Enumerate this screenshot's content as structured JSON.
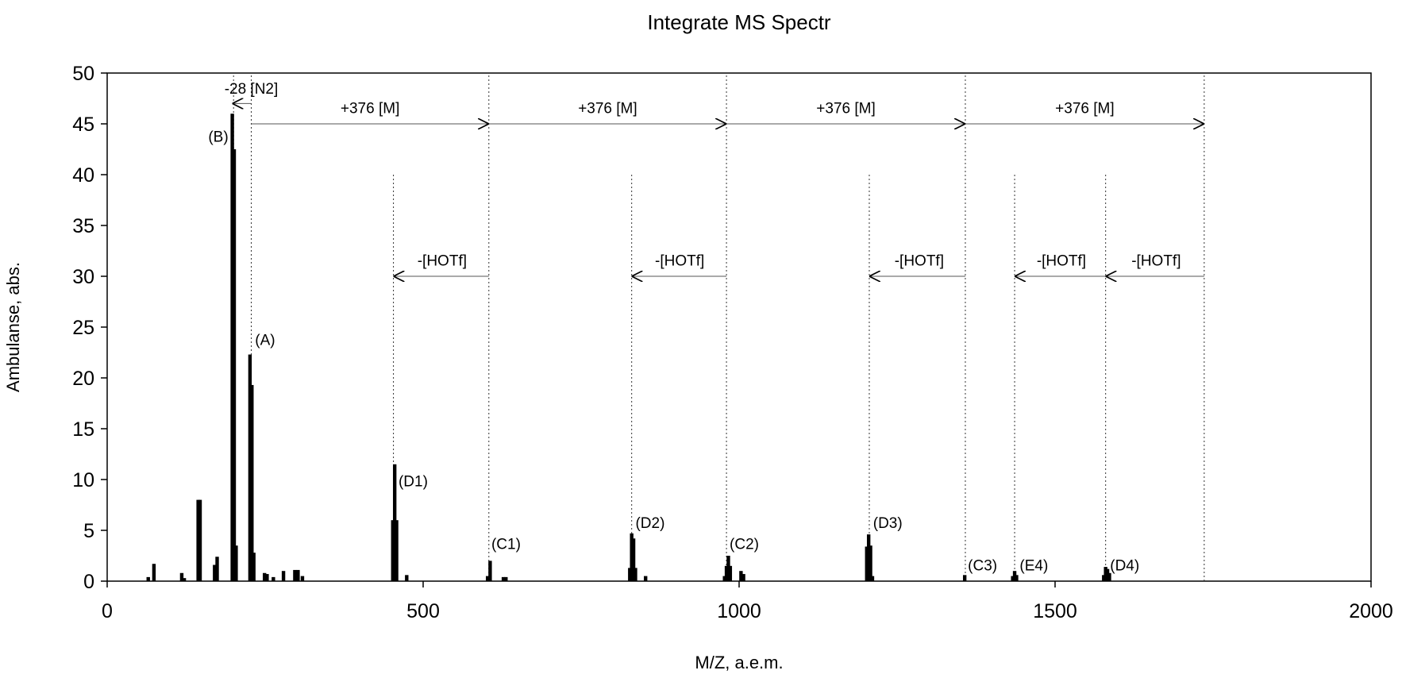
{
  "chart_data": {
    "type": "bar",
    "title": "Integrate MS Spectr",
    "xlabel": "M/Z, a.e.m.",
    "ylabel": "Ambulanse, abs.",
    "xlim": [
      0,
      2000
    ],
    "ylim": [
      0,
      50
    ],
    "xticks": [
      "0",
      "500",
      "1000",
      "1500",
      "2000"
    ],
    "yticks": [
      "0",
      "5",
      "10",
      "15",
      "20",
      "25",
      "30",
      "35",
      "40",
      "45",
      "50"
    ],
    "grid": false,
    "legend": "none",
    "bar_color": "#000000",
    "peaks": [
      {
        "x": 65,
        "y": 0.4
      },
      {
        "x": 74,
        "y": 1.7
      },
      {
        "x": 118,
        "y": 0.8
      },
      {
        "x": 122,
        "y": 0.3
      },
      {
        "x": 144,
        "y": 8.0
      },
      {
        "x": 147,
        "y": 8.0
      },
      {
        "x": 170,
        "y": 1.6
      },
      {
        "x": 174,
        "y": 2.4
      },
      {
        "x": 198,
        "y": 46.0
      },
      {
        "x": 201,
        "y": 42.5
      },
      {
        "x": 204,
        "y": 3.5
      },
      {
        "x": 226,
        "y": 22.3
      },
      {
        "x": 229,
        "y": 19.3
      },
      {
        "x": 232,
        "y": 2.8
      },
      {
        "x": 249,
        "y": 0.8
      },
      {
        "x": 253,
        "y": 0.7
      },
      {
        "x": 263,
        "y": 0.4
      },
      {
        "x": 279,
        "y": 1.0
      },
      {
        "x": 297,
        "y": 1.1
      },
      {
        "x": 302,
        "y": 1.1
      },
      {
        "x": 309,
        "y": 0.5
      },
      {
        "x": 452,
        "y": 6.0
      },
      {
        "x": 455,
        "y": 11.5
      },
      {
        "x": 458,
        "y": 6.0
      },
      {
        "x": 474,
        "y": 0.6
      },
      {
        "x": 602,
        "y": 0.5
      },
      {
        "x": 606,
        "y": 2.0
      },
      {
        "x": 627,
        "y": 0.4
      },
      {
        "x": 631,
        "y": 0.4
      },
      {
        "x": 827,
        "y": 1.3
      },
      {
        "x": 830,
        "y": 4.7
      },
      {
        "x": 833,
        "y": 4.2
      },
      {
        "x": 836,
        "y": 1.3
      },
      {
        "x": 852,
        "y": 0.5
      },
      {
        "x": 977,
        "y": 0.5
      },
      {
        "x": 980,
        "y": 1.5
      },
      {
        "x": 983,
        "y": 2.5
      },
      {
        "x": 986,
        "y": 1.5
      },
      {
        "x": 1003,
        "y": 1.0
      },
      {
        "x": 1007,
        "y": 0.7
      },
      {
        "x": 1202,
        "y": 3.4
      },
      {
        "x": 1205,
        "y": 4.6
      },
      {
        "x": 1208,
        "y": 3.5
      },
      {
        "x": 1211,
        "y": 0.5
      },
      {
        "x": 1357,
        "y": 0.6
      },
      {
        "x": 1433,
        "y": 0.5
      },
      {
        "x": 1436,
        "y": 1.0
      },
      {
        "x": 1439,
        "y": 0.6
      },
      {
        "x": 1577,
        "y": 0.6
      },
      {
        "x": 1580,
        "y": 1.4
      },
      {
        "x": 1583,
        "y": 1.2
      },
      {
        "x": 1586,
        "y": 0.8
      }
    ],
    "peak_labels": [
      {
        "text": "(B)",
        "x": 160,
        "y": 43.8
      },
      {
        "text": "(A)",
        "x": 234,
        "y": 23.8
      },
      {
        "text": "(D1)",
        "x": 461,
        "y": 9.9
      },
      {
        "text": "(C1)",
        "x": 608,
        "y": 3.7
      },
      {
        "text": "(D2)",
        "x": 836,
        "y": 5.8
      },
      {
        "text": "(C2)",
        "x": 985,
        "y": 3.7
      },
      {
        "text": "(D3)",
        "x": 1212,
        "y": 5.8
      },
      {
        "text": "(C3)",
        "x": 1362,
        "y": 1.6
      },
      {
        "text": "(E4)",
        "x": 1444,
        "y": 1.6
      },
      {
        "text": "(D4)",
        "x": 1587,
        "y": 1.6
      }
    ],
    "reference_lines": [
      {
        "x": 200,
        "y_from": 0,
        "y_to": 50
      },
      {
        "x": 228,
        "y_from": 0,
        "y_to": 50
      },
      {
        "x": 604,
        "y_from": 0,
        "y_to": 50
      },
      {
        "x": 980,
        "y_from": 0,
        "y_to": 50
      },
      {
        "x": 1358,
        "y_from": 0,
        "y_to": 50
      },
      {
        "x": 1736,
        "y_from": 0,
        "y_to": 50
      },
      {
        "x": 453,
        "y_from": 0,
        "y_to": 40
      },
      {
        "x": 830,
        "y_from": 0,
        "y_to": 40
      },
      {
        "x": 1206,
        "y_from": 0,
        "y_to": 40
      },
      {
        "x": 1436,
        "y_from": 0,
        "y_to": 40
      },
      {
        "x": 1580,
        "y_from": 0,
        "y_to": 40
      }
    ],
    "annotations": [
      {
        "text": "-28 [N2]",
        "x_from": 228,
        "x_to": 198,
        "y": 47.0,
        "label_x": 228,
        "label_y": 48.5
      },
      {
        "text": "+376 [M]",
        "x_from": 228,
        "x_to": 604,
        "y": 45.0,
        "label_x": 416,
        "label_y": 46.6
      },
      {
        "text": "+376 [M]",
        "x_from": 604,
        "x_to": 980,
        "y": 45.0,
        "label_x": 792,
        "label_y": 46.6
      },
      {
        "text": "+376 [M]",
        "x_from": 980,
        "x_to": 1358,
        "y": 45.0,
        "label_x": 1169,
        "label_y": 46.6
      },
      {
        "text": "+376 [M]",
        "x_from": 1358,
        "x_to": 1736,
        "y": 45.0,
        "label_x": 1547,
        "label_y": 46.6
      },
      {
        "text": "-[HOTf]",
        "x_from": 604,
        "x_to": 453,
        "y": 30.0,
        "label_x": 530,
        "label_y": 31.6
      },
      {
        "text": "-[HOTf]",
        "x_from": 980,
        "x_to": 830,
        "y": 30.0,
        "label_x": 906,
        "label_y": 31.6
      },
      {
        "text": "-[HOTf]",
        "x_from": 1358,
        "x_to": 1206,
        "y": 30.0,
        "label_x": 1285,
        "label_y": 31.6
      },
      {
        "text": "-[HOTf]",
        "x_from": 1580,
        "x_to": 1436,
        "y": 30.0,
        "label_x": 1510,
        "label_y": 31.6
      },
      {
        "text": "-[HOTf]",
        "x_from": 1736,
        "x_to": 1580,
        "y": 30.0,
        "label_x": 1660,
        "label_y": 31.6
      }
    ]
  }
}
